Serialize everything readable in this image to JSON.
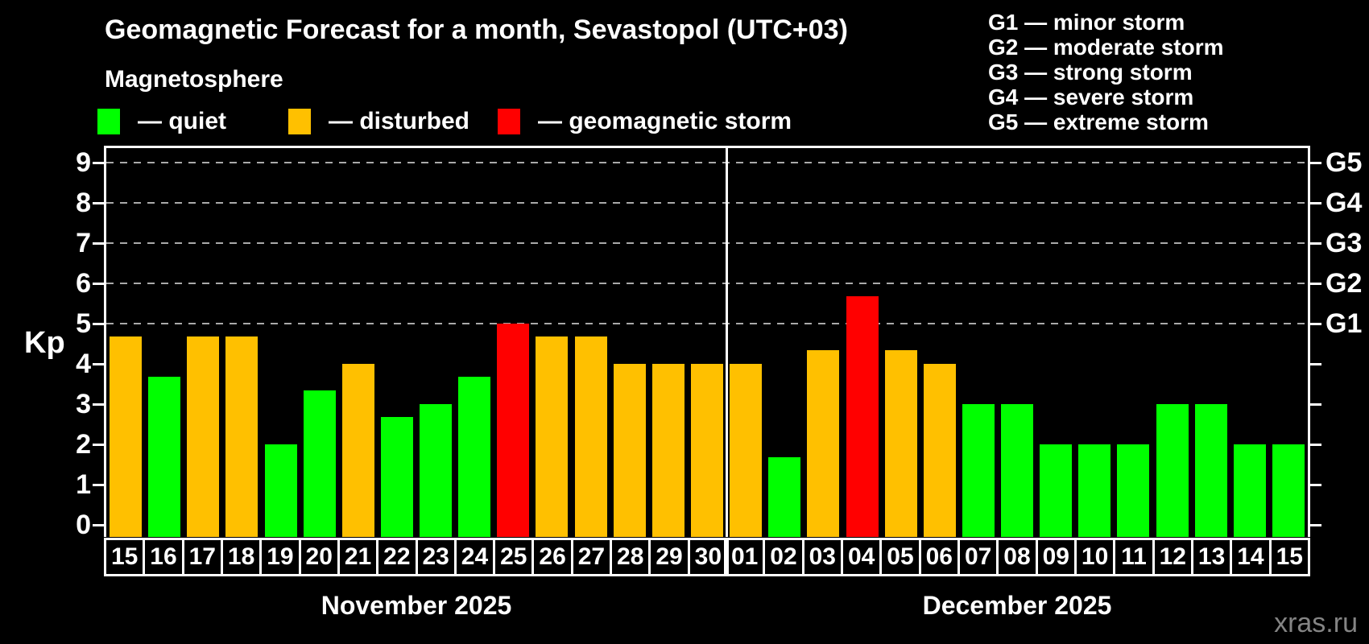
{
  "title": "Geomagnetic Forecast for a month, Sevastopol (UTC+03)",
  "subtitle": "Magnetosphere",
  "legend": {
    "items": [
      {
        "name": "quiet",
        "label": "— quiet",
        "color": "#00ff00"
      },
      {
        "name": "disturbed",
        "label": "— disturbed",
        "color": "#ffc000"
      },
      {
        "name": "storm",
        "label": "— geomagnetic storm",
        "color": "#ff0000"
      }
    ]
  },
  "storm_scale_legend": [
    "G1 — minor storm",
    "G2 — moderate storm",
    "G3 — strong storm",
    "G4 — severe storm",
    "G5 — extreme storm"
  ],
  "watermark": "xras.ru",
  "chart_data": {
    "type": "bar",
    "ylabel": "Kp",
    "ylim": [
      0,
      9
    ],
    "yticks": [
      0,
      1,
      2,
      3,
      4,
      5,
      6,
      7,
      8,
      9
    ],
    "gridlines_at_kp": [
      5,
      6,
      7,
      8,
      9
    ],
    "right_axis": [
      {
        "kp": 5,
        "label": "G1"
      },
      {
        "kp": 6,
        "label": "G2"
      },
      {
        "kp": 7,
        "label": "G3"
      },
      {
        "kp": 8,
        "label": "G4"
      },
      {
        "kp": 9,
        "label": "G5"
      }
    ],
    "series_colors": {
      "quiet": "#00ff00",
      "disturbed": "#ffc000",
      "storm": "#ff0000"
    },
    "months": [
      {
        "label": "November 2025",
        "days": [
          "15",
          "16",
          "17",
          "18",
          "19",
          "20",
          "21",
          "22",
          "23",
          "24",
          "25",
          "26",
          "27",
          "28",
          "29",
          "30"
        ],
        "values": [
          4.67,
          3.67,
          4.67,
          4.67,
          2.0,
          3.33,
          4.0,
          2.67,
          3.0,
          3.67,
          5.0,
          4.67,
          4.67,
          4.0,
          4.0,
          4.0
        ],
        "status": [
          "disturbed",
          "quiet",
          "disturbed",
          "disturbed",
          "quiet",
          "quiet",
          "disturbed",
          "quiet",
          "quiet",
          "quiet",
          "storm",
          "disturbed",
          "disturbed",
          "disturbed",
          "disturbed",
          "disturbed"
        ]
      },
      {
        "label": "December 2025",
        "days": [
          "01",
          "02",
          "03",
          "04",
          "05",
          "06",
          "07",
          "08",
          "09",
          "10",
          "11",
          "12",
          "13",
          "14",
          "15"
        ],
        "values": [
          4.0,
          1.67,
          4.33,
          5.67,
          4.33,
          4.0,
          3.0,
          3.0,
          2.0,
          2.0,
          2.0,
          3.0,
          3.0,
          2.0,
          2.0
        ],
        "status": [
          "disturbed",
          "quiet",
          "disturbed",
          "storm",
          "disturbed",
          "disturbed",
          "quiet",
          "quiet",
          "quiet",
          "quiet",
          "quiet",
          "quiet",
          "quiet",
          "quiet",
          "quiet"
        ]
      }
    ]
  }
}
